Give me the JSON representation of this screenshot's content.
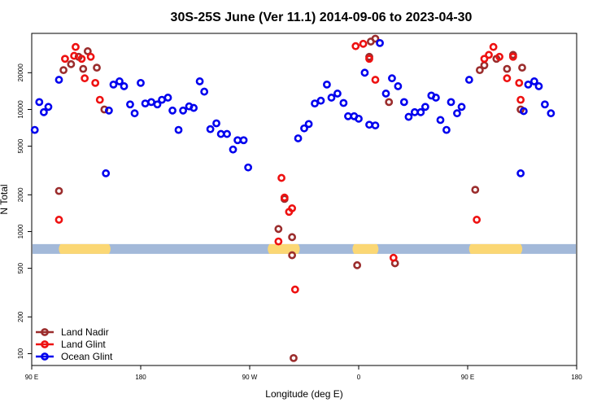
{
  "chart_data": {
    "type": "scatter",
    "title": "30S-25S June (Ver 11.1)   2014-09-06 to 2023-04-30",
    "xlabel": "Longitude (deg E)",
    "ylabel": "N Total",
    "xlim": [
      90,
      450
    ],
    "ylim": [
      80,
      42000
    ],
    "y_scale": "log",
    "x_ticks": [
      {
        "value": 90,
        "label": "90 E"
      },
      {
        "value": 162,
        "label": "180"
      },
      {
        "value": 234,
        "label": "90 W"
      },
      {
        "value": 306,
        "label": "0"
      },
      {
        "value": 378,
        "label": "90 E"
      },
      {
        "value": 450,
        "label": "180"
      }
    ],
    "y_ticks": [
      {
        "value": 100,
        "label": "100"
      },
      {
        "value": 200,
        "label": "200"
      },
      {
        "value": 500,
        "label": "500"
      },
      {
        "value": 1000,
        "label": "1000"
      },
      {
        "value": 2000,
        "label": "2000"
      },
      {
        "value": 5000,
        "label": "5000"
      },
      {
        "value": 10000,
        "label": "10000"
      },
      {
        "value": 20000,
        "label": "20000"
      }
    ],
    "grid": false,
    "legend_position": "bottom-left",
    "surface_band": {
      "y": 720,
      "color": "#a3b9d9",
      "land_color": "#fbd774",
      "land_segments": [
        [
          109,
          141
        ],
        [
          247,
          266
        ],
        [
          303,
          318
        ],
        [
          380,
          413
        ]
      ]
    },
    "series": [
      {
        "name": "Land Nadir",
        "color": "#9b2d2d",
        "points": [
          [
            108,
            2150
          ],
          [
            111,
            21000
          ],
          [
            116,
            23500
          ],
          [
            121,
            27000
          ],
          [
            124,
            21500
          ],
          [
            127,
            30000
          ],
          [
            133,
            22000
          ],
          [
            138,
            10000
          ],
          [
            253,
            1050
          ],
          [
            262,
            900
          ],
          [
            257,
            1850
          ],
          [
            262,
            640
          ],
          [
            263,
            92
          ],
          [
            305,
            530
          ],
          [
            313,
            27000
          ],
          [
            314,
            36000
          ],
          [
            317,
            38000
          ],
          [
            326,
            11500
          ],
          [
            330,
            550
          ],
          [
            383,
            2200
          ],
          [
            386,
            21000
          ],
          [
            389,
            23000
          ],
          [
            397,
            26000
          ],
          [
            404,
            21500
          ],
          [
            408,
            28000
          ],
          [
            413,
            10000
          ],
          [
            414,
            22000
          ]
        ]
      },
      {
        "name": "Land Glint",
        "color": "#ee1111",
        "points": [
          [
            108,
            1250
          ],
          [
            112,
            26000
          ],
          [
            118,
            27500
          ],
          [
            119,
            32500
          ],
          [
            123,
            26000
          ],
          [
            125,
            18000
          ],
          [
            129,
            27000
          ],
          [
            132,
            16500
          ],
          [
            135,
            12000
          ],
          [
            253,
            830
          ],
          [
            255,
            2750
          ],
          [
            257,
            1900
          ],
          [
            260,
            1450
          ],
          [
            262,
            1550
          ],
          [
            264,
            335
          ],
          [
            304,
            33000
          ],
          [
            309,
            34500
          ],
          [
            313,
            26000
          ],
          [
            317,
            17500
          ],
          [
            329,
            610
          ],
          [
            384,
            1250
          ],
          [
            389,
            26000
          ],
          [
            392,
            28000
          ],
          [
            395,
            32500
          ],
          [
            399,
            27000
          ],
          [
            404,
            18000
          ],
          [
            408,
            27000
          ],
          [
            412,
            16500
          ],
          [
            413,
            12000
          ]
        ]
      },
      {
        "name": "Ocean Glint",
        "color": "#0000ee",
        "points": [
          [
            92,
            6800
          ],
          [
            95,
            11500
          ],
          [
            98,
            9500
          ],
          [
            101,
            10500
          ],
          [
            108,
            17500
          ],
          [
            139,
            3000
          ],
          [
            141,
            9800
          ],
          [
            144,
            16000
          ],
          [
            148,
            17000
          ],
          [
            151,
            15500
          ],
          [
            155,
            11000
          ],
          [
            158,
            9300
          ],
          [
            162,
            16500
          ],
          [
            165,
            11200
          ],
          [
            169,
            11500
          ],
          [
            173,
            11000
          ],
          [
            176,
            12000
          ],
          [
            180,
            12500
          ],
          [
            183,
            9800
          ],
          [
            187,
            6800
          ],
          [
            190,
            9800
          ],
          [
            194,
            10600
          ],
          [
            197,
            10300
          ],
          [
            201,
            17000
          ],
          [
            204,
            14000
          ],
          [
            208,
            6900
          ],
          [
            212,
            7700
          ],
          [
            215,
            6300
          ],
          [
            219,
            6300
          ],
          [
            223,
            4700
          ],
          [
            226,
            5600
          ],
          [
            230,
            5600
          ],
          [
            233,
            3350
          ],
          [
            266,
            5800
          ],
          [
            270,
            7000
          ],
          [
            273,
            7600
          ],
          [
            277,
            11200
          ],
          [
            281,
            11800
          ],
          [
            285,
            16000
          ],
          [
            288,
            12500
          ],
          [
            292,
            13500
          ],
          [
            296,
            11300
          ],
          [
            299,
            8800
          ],
          [
            303,
            8800
          ],
          [
            306,
            8400
          ],
          [
            310,
            20000
          ],
          [
            313,
            7500
          ],
          [
            317,
            7400
          ],
          [
            320,
            35000
          ],
          [
            324,
            13500
          ],
          [
            328,
            18000
          ],
          [
            332,
            15500
          ],
          [
            336,
            11500
          ],
          [
            339,
            8700
          ],
          [
            343,
            9500
          ],
          [
            347,
            9500
          ],
          [
            350,
            10500
          ],
          [
            354,
            13000
          ],
          [
            357,
            12500
          ],
          [
            360,
            8200
          ],
          [
            364,
            6800
          ],
          [
            367,
            11500
          ],
          [
            371,
            9300
          ],
          [
            374,
            10500
          ],
          [
            379,
            17500
          ],
          [
            413,
            3000
          ],
          [
            415,
            9700
          ],
          [
            418,
            16000
          ],
          [
            422,
            17000
          ],
          [
            425,
            15500
          ],
          [
            429,
            11000
          ],
          [
            433,
            9300
          ]
        ]
      }
    ]
  }
}
